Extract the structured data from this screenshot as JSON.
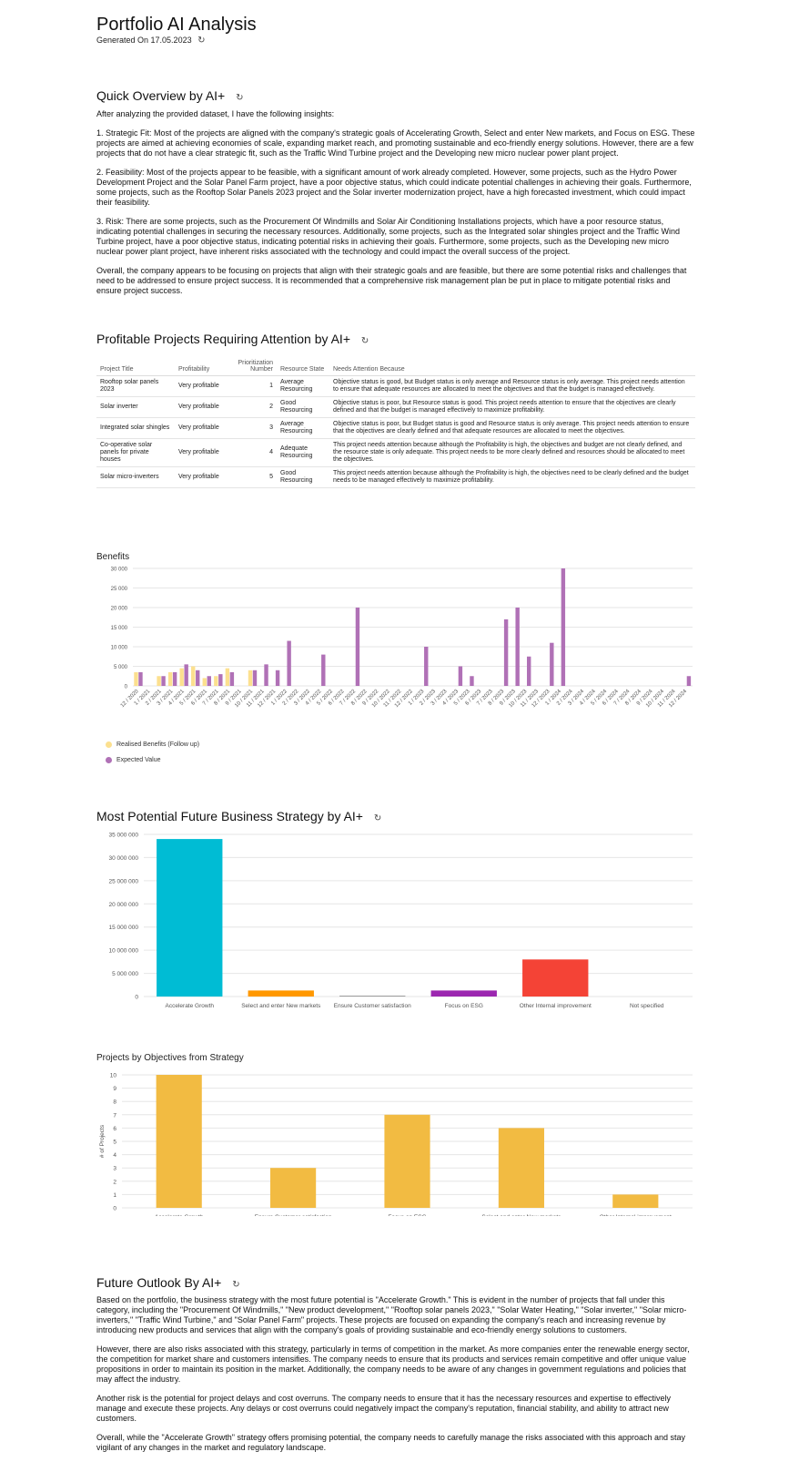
{
  "header": {
    "title": "Portfolio AI Analysis",
    "generated": "Generated On 17.05.2023"
  },
  "icons": {
    "refresh": "refresh-icon"
  },
  "overview": {
    "title": "Quick Overview by AI+",
    "paragraphs": [
      "After analyzing the provided dataset, I have the following insights:",
      "1. Strategic Fit: Most of the projects are aligned with the company's strategic goals of Accelerating Growth, Select and enter New markets, and Focus on ESG. These projects are aimed at achieving economies of scale, expanding market reach, and promoting sustainable and eco-friendly energy solutions. However, there are a few projects that do not have a clear strategic fit, such as the Traffic Wind Turbine project and the Developing new micro nuclear power plant project.",
      "2. Feasibility: Most of the projects appear to be feasible, with a significant amount of work already completed. However, some projects, such as the Hydro Power Development Project and the Solar Panel Farm project, have a poor objective status, which could indicate potential challenges in achieving their goals. Furthermore, some projects, such as the Rooftop Solar Panels 2023 project and the Solar inverter modernization project, have a high forecasted investment, which could impact their feasibility.",
      "3. Risk: There are some projects, such as the Procurement Of Windmills and Solar Air Conditioning Installations projects, which have a poor resource status, indicating potential challenges in securing the necessary resources. Additionally, some projects, such as the Integrated solar shingles project and the Traffic Wind Turbine project, have a poor objective status, indicating potential risks in achieving their goals. Furthermore, some projects, such as the Developing new micro nuclear power plant project, have inherent risks associated with the technology and could impact the overall success of the project.",
      "Overall, the company appears to be focusing on projects that align with their strategic goals and are feasible, but there are some potential risks and challenges that need to be addressed to ensure project success. It is recommended that a comprehensive risk management plan be put in place to mitigate potential risks and ensure project success."
    ]
  },
  "profitable": {
    "title": "Profitable Projects Requiring Attention by AI+",
    "columns": [
      "Project Title",
      "Profitability",
      "Prioritization Number",
      "Resource State",
      "Needs Attention Because"
    ],
    "rows": [
      [
        "Rooftop solar panels 2023",
        "Very profitable",
        "1",
        "Average Resourcing",
        "Objective status is good, but Budget status is only average and Resource status is only average. This project needs attention to ensure that adequate resources are allocated to meet the objectives and that the budget is managed effectively."
      ],
      [
        "Solar inverter",
        "Very profitable",
        "2",
        "Good Resourcing",
        "Objective status is poor, but Resource status is good. This project needs attention to ensure that the objectives are clearly defined and that the budget is managed effectively to maximize profitability."
      ],
      [
        "Integrated solar shingles",
        "Very profitable",
        "3",
        "Average Resourcing",
        "Objective status is poor, but Budget status is good and Resource status is only average. This project needs attention to ensure that the objectives are clearly defined and that adequate resources are allocated to meet the objectives."
      ],
      [
        "Co-operative solar panels for private houses",
        "Very profitable",
        "4",
        "Adequate Resourcing",
        "This project needs attention because although the Profitability is high, the objectives and budget are not clearly defined, and the resource state is only adequate. This project needs to be more clearly defined and resources should be allocated to meet the objectives."
      ],
      [
        "Solar micro-inverters",
        "Very profitable",
        "5",
        "Good Resourcing",
        "This project needs attention because although the Profitability is high, the objectives need to be clearly defined and the budget needs to be managed effectively to maximize profitability."
      ]
    ]
  },
  "chart_data": [
    {
      "type": "bar",
      "title": "Benefits",
      "ylim": [
        0,
        30000
      ],
      "yticks": [
        "0",
        "5 000",
        "10 000",
        "15 000",
        "20 000",
        "25 000",
        "30 000"
      ],
      "categories": [
        "12 / 2020",
        "1 / 2021",
        "2 / 2021",
        "3 / 2021",
        "4 / 2021",
        "5 / 2021",
        "6 / 2021",
        "7 / 2021",
        "8 / 2021",
        "9 / 2021",
        "10 / 2021",
        "11 / 2021",
        "12 / 2021",
        "1 / 2022",
        "2 / 2022",
        "3 / 2022",
        "4 / 2022",
        "5 / 2022",
        "6 / 2022",
        "7 / 2022",
        "8 / 2022",
        "9 / 2022",
        "10 / 2022",
        "11 / 2022",
        "12 / 2022",
        "1 / 2023",
        "2 / 2023",
        "3 / 2023",
        "4 / 2023",
        "5 / 2023",
        "6 / 2023",
        "7 / 2023",
        "8 / 2023",
        "9 / 2023",
        "10 / 2023",
        "11 / 2023",
        "12 / 2023",
        "1 / 2024",
        "2 / 2024",
        "3 / 2024",
        "4 / 2024",
        "5 / 2024",
        "6 / 2024",
        "7 / 2024",
        "8 / 2024",
        "9 / 2024",
        "10 / 2024",
        "11 / 2024",
        "12 / 2024"
      ],
      "series": [
        {
          "name": "Realised Benefits (Follow up)",
          "color": "#fce08f",
          "values": [
            3500,
            0,
            2500,
            3500,
            4500,
            5000,
            2000,
            2500,
            4500,
            0,
            4000,
            0,
            0,
            0,
            0,
            0,
            0,
            0,
            0,
            0,
            0,
            0,
            0,
            0,
            0,
            0,
            0,
            0,
            0,
            0,
            0,
            0,
            0,
            0,
            0,
            0,
            0,
            0,
            0,
            0,
            0,
            0,
            0,
            0,
            0,
            0,
            0,
            0,
            0
          ]
        },
        {
          "name": "Expected Value",
          "color": "#b071b6",
          "values": [
            3500,
            0,
            2500,
            3500,
            5500,
            4000,
            2500,
            3000,
            3500,
            0,
            4000,
            5500,
            4000,
            11500,
            0,
            0,
            8000,
            0,
            0,
            20000,
            0,
            0,
            0,
            0,
            0,
            10000,
            0,
            0,
            5000,
            2500,
            0,
            0,
            17000,
            20000,
            7500,
            0,
            11000,
            30000,
            0,
            0,
            0,
            0,
            0,
            0,
            0,
            0,
            0,
            0,
            2500
          ]
        }
      ],
      "legend": "bottom-left"
    },
    {
      "type": "bar",
      "title": "Most Potential Future Business Strategy by AI+",
      "ylim": [
        0,
        35000000
      ],
      "yticks": [
        "0",
        "5 000 000",
        "10 000 000",
        "15 000 000",
        "20 000 000",
        "25 000 000",
        "30 000 000",
        "35 000 000"
      ],
      "categories": [
        "Accelerate Growth",
        "Select and enter New markets",
        "Ensure Customer satisfaction",
        "Focus on ESG",
        "Other Internal improvement",
        "Not specified"
      ],
      "values": [
        34000000,
        1300000,
        150000,
        1300000,
        8000000,
        0
      ],
      "colors": [
        "#00bcd4",
        "#ff9800",
        "#9e9e9e",
        "#9c27b0",
        "#f44336",
        "#9e9e9e"
      ]
    },
    {
      "type": "bar",
      "title": "Projects by Objectives from Strategy",
      "ylabel": "# of Projects",
      "ylim": [
        0,
        10
      ],
      "yticks": [
        "0",
        "1",
        "2",
        "3",
        "4",
        "5",
        "6",
        "7",
        "8",
        "9",
        "10"
      ],
      "categories": [
        "Accelerate Growth",
        "Ensure Customer satisfaction",
        "Focus on ESG",
        "Select and enter New markets",
        "Other Internal improvement"
      ],
      "values": [
        10,
        3,
        7,
        6,
        1
      ],
      "color": "#f2bb42"
    }
  ],
  "outlook": {
    "title": "Future Outlook By AI+",
    "paragraphs": [
      "Based on the portfolio, the business strategy with the most future potential is \"Accelerate Growth.\" This is evident in the number of projects that fall under this category, including the \"Procurement Of Windmills,\" \"New product development,\" \"Rooftop solar panels 2023,\" \"Solar Water Heating,\" \"Solar inverter,\" \"Solar micro-inverters,\" \"Traffic Wind Turbine,\" and \"Solar Panel Farm\" projects. These projects are focused on expanding the company's reach and increasing revenue by introducing new products and services that align with the company's goals of providing sustainable and eco-friendly energy solutions to customers.",
      "However, there are also risks associated with this strategy, particularly in terms of competition in the market. As more companies enter the renewable energy sector, the competition for market share and customers intensifies. The company needs to ensure that its products and services remain competitive and offer unique value propositions in order to maintain its position in the market. Additionally, the company needs to be aware of any changes in government regulations and policies that may affect the industry.",
      "Another risk is the potential for project delays and cost overruns. The company needs to ensure that it has the necessary resources and expertise to effectively manage and execute these projects. Any delays or cost overruns could negatively impact the company's reputation, financial stability, and ability to attract new customers.",
      "Overall, while the \"Accelerate Growth\" strategy offers promising potential, the company needs to carefully manage the risks associated with this approach and stay vigilant of any changes in the market and regulatory landscape."
    ]
  }
}
